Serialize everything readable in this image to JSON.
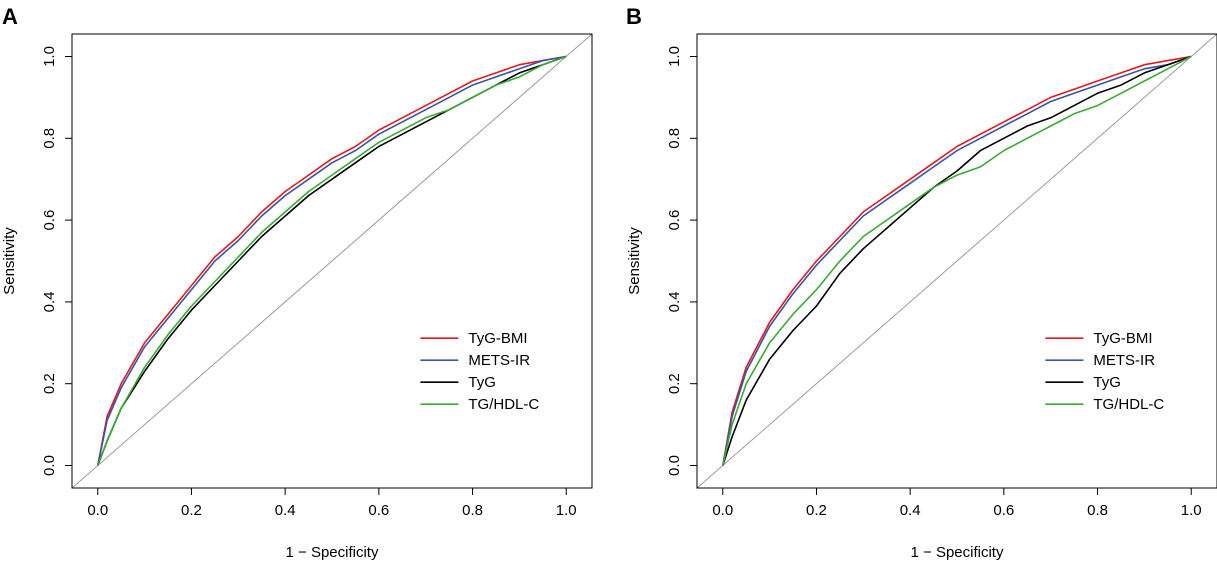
{
  "chart_data": [
    {
      "panel_label": "A",
      "type": "line",
      "title": "",
      "xlabel": "1 − Specificity",
      "ylabel": "Sensitivity",
      "xlim": [
        0,
        1
      ],
      "ylim": [
        0,
        1
      ],
      "xticks": [
        "0.0",
        "0.2",
        "0.4",
        "0.6",
        "0.8",
        "1.0"
      ],
      "yticks": [
        "0.0",
        "0.2",
        "0.4",
        "0.6",
        "0.8",
        "1.0"
      ],
      "reference_line": "diagonal",
      "legend_position": "bottom-right",
      "series": [
        {
          "name": "TyG-BMI",
          "color": "#e41a1c",
          "x": [
            0,
            0.02,
            0.05,
            0.1,
            0.15,
            0.2,
            0.25,
            0.3,
            0.35,
            0.4,
            0.45,
            0.5,
            0.55,
            0.6,
            0.65,
            0.7,
            0.75,
            0.8,
            0.85,
            0.9,
            0.95,
            1.0
          ],
          "y": [
            0,
            0.12,
            0.2,
            0.3,
            0.37,
            0.44,
            0.51,
            0.56,
            0.62,
            0.67,
            0.71,
            0.75,
            0.78,
            0.82,
            0.85,
            0.88,
            0.91,
            0.94,
            0.96,
            0.98,
            0.99,
            1.0
          ]
        },
        {
          "name": "METS-IR",
          "color": "#3a53a4",
          "x": [
            0,
            0.02,
            0.05,
            0.1,
            0.15,
            0.2,
            0.25,
            0.3,
            0.35,
            0.4,
            0.45,
            0.5,
            0.55,
            0.6,
            0.65,
            0.7,
            0.75,
            0.8,
            0.85,
            0.9,
            0.95,
            1.0
          ],
          "y": [
            0,
            0.11,
            0.19,
            0.29,
            0.36,
            0.43,
            0.5,
            0.55,
            0.61,
            0.66,
            0.7,
            0.74,
            0.77,
            0.81,
            0.84,
            0.87,
            0.9,
            0.93,
            0.95,
            0.97,
            0.99,
            1.0
          ]
        },
        {
          "name": "TyG",
          "color": "#000000",
          "x": [
            0,
            0.02,
            0.05,
            0.1,
            0.15,
            0.2,
            0.25,
            0.3,
            0.35,
            0.4,
            0.45,
            0.5,
            0.55,
            0.6,
            0.65,
            0.7,
            0.75,
            0.8,
            0.85,
            0.9,
            0.95,
            1.0
          ],
          "y": [
            0,
            0.06,
            0.14,
            0.23,
            0.31,
            0.38,
            0.44,
            0.5,
            0.56,
            0.61,
            0.66,
            0.7,
            0.74,
            0.78,
            0.81,
            0.84,
            0.87,
            0.9,
            0.93,
            0.96,
            0.98,
            1.0
          ]
        },
        {
          "name": "TG/HDL-C",
          "color": "#3aaa35",
          "x": [
            0,
            0.02,
            0.05,
            0.1,
            0.15,
            0.2,
            0.25,
            0.3,
            0.35,
            0.4,
            0.45,
            0.5,
            0.55,
            0.6,
            0.65,
            0.7,
            0.75,
            0.8,
            0.85,
            0.9,
            0.95,
            1.0
          ],
          "y": [
            0,
            0.06,
            0.14,
            0.24,
            0.32,
            0.39,
            0.45,
            0.51,
            0.57,
            0.62,
            0.67,
            0.71,
            0.75,
            0.79,
            0.82,
            0.85,
            0.87,
            0.9,
            0.93,
            0.95,
            0.98,
            1.0
          ]
        }
      ]
    },
    {
      "panel_label": "B",
      "type": "line",
      "title": "",
      "xlabel": "1 − Specificity",
      "ylabel": "Sensitivity",
      "xlim": [
        0,
        1
      ],
      "ylim": [
        0,
        1
      ],
      "xticks": [
        "0.0",
        "0.2",
        "0.4",
        "0.6",
        "0.8",
        "1.0"
      ],
      "yticks": [
        "0.0",
        "0.2",
        "0.4",
        "0.6",
        "0.8",
        "1.0"
      ],
      "reference_line": "diagonal",
      "legend_position": "bottom-right",
      "series": [
        {
          "name": "TyG-BMI",
          "color": "#e41a1c",
          "x": [
            0,
            0.02,
            0.05,
            0.1,
            0.15,
            0.2,
            0.25,
            0.3,
            0.35,
            0.4,
            0.45,
            0.5,
            0.55,
            0.6,
            0.65,
            0.7,
            0.75,
            0.8,
            0.85,
            0.9,
            0.95,
            1.0
          ],
          "y": [
            0,
            0.13,
            0.24,
            0.35,
            0.43,
            0.5,
            0.56,
            0.62,
            0.66,
            0.7,
            0.74,
            0.78,
            0.81,
            0.84,
            0.87,
            0.9,
            0.92,
            0.94,
            0.96,
            0.98,
            0.99,
            1.0
          ]
        },
        {
          "name": "METS-IR",
          "color": "#3a53a4",
          "x": [
            0,
            0.02,
            0.05,
            0.1,
            0.15,
            0.2,
            0.25,
            0.3,
            0.35,
            0.4,
            0.45,
            0.5,
            0.55,
            0.6,
            0.65,
            0.7,
            0.75,
            0.8,
            0.85,
            0.9,
            0.95,
            1.0
          ],
          "y": [
            0,
            0.12,
            0.23,
            0.34,
            0.42,
            0.49,
            0.55,
            0.61,
            0.65,
            0.69,
            0.73,
            0.77,
            0.8,
            0.83,
            0.86,
            0.89,
            0.91,
            0.93,
            0.95,
            0.97,
            0.98,
            1.0
          ]
        },
        {
          "name": "TyG",
          "color": "#000000",
          "x": [
            0,
            0.02,
            0.05,
            0.1,
            0.15,
            0.2,
            0.25,
            0.3,
            0.35,
            0.4,
            0.45,
            0.5,
            0.55,
            0.6,
            0.65,
            0.7,
            0.75,
            0.8,
            0.85,
            0.9,
            0.95,
            1.0
          ],
          "y": [
            0,
            0.07,
            0.16,
            0.26,
            0.33,
            0.39,
            0.47,
            0.53,
            0.58,
            0.63,
            0.68,
            0.72,
            0.77,
            0.8,
            0.83,
            0.85,
            0.88,
            0.91,
            0.93,
            0.96,
            0.98,
            1.0
          ]
        },
        {
          "name": "TG/HDL-C",
          "color": "#3aaa35",
          "x": [
            0,
            0.02,
            0.05,
            0.1,
            0.15,
            0.2,
            0.25,
            0.3,
            0.35,
            0.4,
            0.45,
            0.5,
            0.55,
            0.6,
            0.65,
            0.7,
            0.75,
            0.8,
            0.85,
            0.9,
            0.95,
            1.0
          ],
          "y": [
            0,
            0.1,
            0.2,
            0.3,
            0.37,
            0.43,
            0.5,
            0.56,
            0.6,
            0.64,
            0.68,
            0.71,
            0.73,
            0.77,
            0.8,
            0.83,
            0.86,
            0.88,
            0.91,
            0.94,
            0.97,
            1.0
          ]
        }
      ]
    }
  ]
}
